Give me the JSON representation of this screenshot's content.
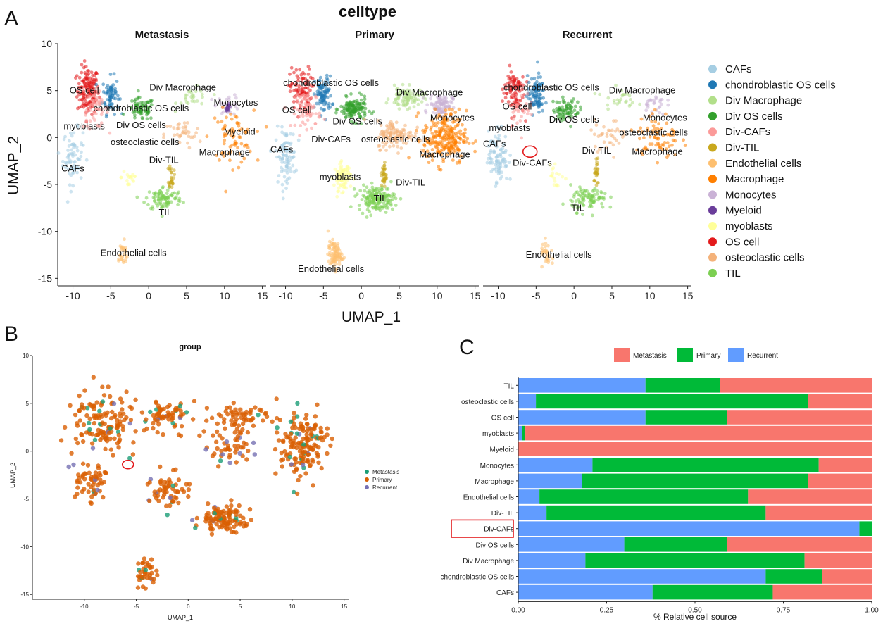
{
  "panel_letters": {
    "a": "A",
    "b": "B",
    "c": "C"
  },
  "colors": {
    "CAFs": "#a6cee3",
    "chondroblastic OS cells": "#1f78b4",
    "Div Macrophage": "#b2df8a",
    "Div OS cells": "#33a02c",
    "Div-CAFs": "#fb9a99",
    "Div-TIL": "#c9a81e",
    "Endothelial cells": "#fdbf6f",
    "Macrophage": "#ff7f00",
    "Monocytes": "#cab2d6",
    "Myeloid": "#6a3d9a",
    "myoblasts": "#ffff99",
    "OS cell": "#e31a1c",
    "osteoclastic cells": "#f4b27a",
    "TIL": "#7ccf52",
    "Metastasis_B": "#1b9e77",
    "Primary_B": "#d95f02",
    "Recurrent_B": "#7570b3",
    "Metastasis_C": "#f8766d",
    "Primary_C": "#00ba38",
    "Recurrent_C": "#619cff"
  },
  "chart_data": [
    {
      "id": "A",
      "type": "scatter",
      "title": "celltype",
      "xlabel": "UMAP_1",
      "ylabel": "UMAP_2",
      "xlim": [
        -12,
        15.5
      ],
      "ylim": [
        -15.8,
        10
      ],
      "xticks": [
        "-10",
        "-5",
        "0",
        "5",
        "10",
        "15"
      ],
      "yticks": [
        "10",
        "5",
        "0",
        "-5",
        "-10",
        "-15"
      ],
      "facets": [
        {
          "name": "Metastasis",
          "labels": [
            {
              "text": "OS cell",
              "x": -8.5,
              "y": 5
            },
            {
              "text": "Div Macrophage",
              "x": 4.5,
              "y": 5.3
            },
            {
              "text": "chondroblastic OS cells",
              "x": -1,
              "y": 3.1
            },
            {
              "text": "Monocytes",
              "x": 11.5,
              "y": 3.7
            },
            {
              "text": "myoblasts",
              "x": -8.5,
              "y": 1.2
            },
            {
              "text": "Div OS cells",
              "x": -1,
              "y": 1.3
            },
            {
              "text": "Myeloid",
              "x": 12,
              "y": 0.6
            },
            {
              "text": "osteoclastic cells",
              "x": -0.5,
              "y": -0.5
            },
            {
              "text": "Macrophage",
              "x": 10,
              "y": -1.6
            },
            {
              "text": "Div-TIL",
              "x": 2,
              "y": -2.4
            },
            {
              "text": "CAFs",
              "x": -10,
              "y": -3.3
            },
            {
              "text": "TIL",
              "x": 2.2,
              "y": -8
            },
            {
              "text": "Endothelial cells",
              "x": -2,
              "y": -12.3
            }
          ]
        },
        {
          "name": "Primary",
          "labels": [
            {
              "text": "chondroblastic OS cells",
              "x": -4,
              "y": 5.8
            },
            {
              "text": "Div Macrophage",
              "x": 9,
              "y": 4.8
            },
            {
              "text": "OS cell",
              "x": -8.5,
              "y": 2.9
            },
            {
              "text": "Div OS cells",
              "x": -0.5,
              "y": 1.7
            },
            {
              "text": "Monocytes",
              "x": 12,
              "y": 2.1
            },
            {
              "text": "Div-CAFs",
              "x": -4,
              "y": -0.2
            },
            {
              "text": "osteoclastic cells",
              "x": 4.5,
              "y": -0.2
            },
            {
              "text": "CAFs",
              "x": -10.5,
              "y": -1.3
            },
            {
              "text": "Macrophage",
              "x": 11,
              "y": -1.8
            },
            {
              "text": "myoblasts",
              "x": -2.8,
              "y": -4.2
            },
            {
              "text": "Div-TIL",
              "x": 6.5,
              "y": -4.8
            },
            {
              "text": "TIL",
              "x": 2.5,
              "y": -6.5
            },
            {
              "text": "Endothelial cells",
              "x": -4,
              "y": -14
            }
          ]
        },
        {
          "name": "Recurrent",
          "labels": [
            {
              "text": "chondroblastic OS cells",
              "x": -3,
              "y": 5.3
            },
            {
              "text": "Div Macrophage",
              "x": 9,
              "y": 5
            },
            {
              "text": "OS cell",
              "x": -7.5,
              "y": 3.3
            },
            {
              "text": "Monocytes",
              "x": 12,
              "y": 2.1
            },
            {
              "text": "myoblasts",
              "x": -8.5,
              "y": 1
            },
            {
              "text": "Div OS cells",
              "x": 0,
              "y": 1.9
            },
            {
              "text": "osteoclastic cells",
              "x": 10.5,
              "y": 0.5
            },
            {
              "text": "CAFs",
              "x": -10.5,
              "y": -0.7
            },
            {
              "text": "Div-TIL",
              "x": 3,
              "y": -1.4
            },
            {
              "text": "Macrophage",
              "x": 11,
              "y": -1.5
            },
            {
              "text": "Div-CAFs",
              "x": -5.5,
              "y": -2.7
            },
            {
              "text": "TIL",
              "x": 0.5,
              "y": -7.5
            },
            {
              "text": "Endothelial cells",
              "x": -2,
              "y": -12.5
            }
          ]
        }
      ],
      "legend": [
        "CAFs",
        "chondroblastic OS cells",
        "Div Macrophage",
        "Div OS cells",
        "Div-CAFs",
        "Div-TIL",
        "Endothelial cells",
        "Macrophage",
        "Monocytes",
        "Myeloid",
        "myoblasts",
        "OS cell",
        "osteoclastic cells",
        "TIL"
      ],
      "clusters": [
        {
          "cell": "OS cell",
          "cx": -8,
          "cy": 5,
          "sx": 1.3,
          "sy": 2.3,
          "w": [
            1.6,
            1.0,
            1.0
          ]
        },
        {
          "cell": "chondroblastic OS cells",
          "cx": -5,
          "cy": 4.5,
          "sx": 1,
          "sy": 1.8,
          "w": [
            0.8,
            1.0,
            1.0
          ]
        },
        {
          "cell": "CAFs",
          "cx": -10,
          "cy": -2,
          "sx": 1.2,
          "sy": 2.6,
          "w": [
            0.8,
            1.0,
            1.0
          ]
        },
        {
          "cell": "Div-CAFs",
          "cx": -7,
          "cy": 3,
          "sx": 1.5,
          "sy": 1.8,
          "w": [
            0.6,
            0.8,
            0.3
          ]
        },
        {
          "cell": "myoblasts",
          "cx": -2.5,
          "cy": -4.2,
          "sx": 1,
          "sy": 1.3,
          "w": [
            0.2,
            1.0,
            0.2
          ]
        },
        {
          "cell": "Div OS cells",
          "cx": -1,
          "cy": 3,
          "sx": 1.6,
          "sy": 1.1,
          "w": [
            0.8,
            1.5,
            0.8
          ]
        },
        {
          "cell": "Div Macrophage",
          "cx": 6,
          "cy": 4.2,
          "sx": 2,
          "sy": 1,
          "w": [
            0.3,
            1.0,
            0.3
          ]
        },
        {
          "cell": "Monocytes",
          "cx": 10.5,
          "cy": 3.5,
          "sx": 1.4,
          "sy": 1,
          "w": [
            0.3,
            1.0,
            0.3
          ]
        },
        {
          "cell": "Myeloid",
          "cx": 10.5,
          "cy": 3.2,
          "sx": 0.3,
          "sy": 0.3,
          "w": [
            0.2,
            0,
            0
          ]
        },
        {
          "cell": "Macrophage",
          "cx": 11,
          "cy": 0,
          "sx": 2.6,
          "sy": 2.6,
          "w": [
            0.8,
            2.8,
            0.8
          ]
        },
        {
          "cell": "osteoclastic cells",
          "cx": 4.5,
          "cy": 0.3,
          "sx": 2.2,
          "sy": 1.4,
          "w": [
            0.4,
            1.3,
            0.4
          ]
        },
        {
          "cell": "TIL",
          "cx": 2,
          "cy": -6.5,
          "sx": 2.2,
          "sy": 1.2,
          "w": [
            1.0,
            1.8,
            1.0
          ]
        },
        {
          "cell": "Div-TIL",
          "cx": 3,
          "cy": -4,
          "sx": 0.3,
          "sy": 1.2,
          "w": [
            0.3,
            0.4,
            0.3
          ]
        },
        {
          "cell": "Endothelial cells",
          "cx": -3.5,
          "cy": -12.5,
          "sx": 0.8,
          "sy": 1.3,
          "w": [
            0.3,
            1.0,
            0.3
          ]
        }
      ]
    },
    {
      "id": "B",
      "type": "scatter",
      "title": "group",
      "xlabel": "UMAP_1",
      "ylabel": "UMAP_2",
      "xlim": [
        -15,
        15.5
      ],
      "ylim": [
        -15.5,
        10
      ],
      "xticks": [
        "-10",
        "-5",
        "0",
        "5",
        "10",
        "15"
      ],
      "yticks": [
        "10",
        "5",
        "0",
        "-5",
        "-10",
        "-15"
      ],
      "legend": [
        "Metastasis",
        "Primary",
        "Recurrent"
      ]
    },
    {
      "id": "C",
      "type": "bar",
      "orientation": "horizontal",
      "stacked": true,
      "xlabel": "% Relative cell source",
      "xticks": [
        "0.00",
        "0.25",
        "0.50",
        "0.75",
        "1.00"
      ],
      "xlim": [
        0,
        1
      ],
      "legend": [
        "Metastasis",
        "Primary",
        "Recurrent"
      ],
      "highlight": "Div-CAFs",
      "categories": [
        "TIL",
        "osteoclastic cells",
        "OS cell",
        "myoblasts",
        "Myeloid",
        "Monocytes",
        "Macrophage",
        "Endothelial cells",
        "Div-TIL",
        "Div-CAFs",
        "Div OS cells",
        "Div Macrophage",
        "chondroblastic OS cells",
        "CAFs"
      ],
      "series": [
        {
          "name": "Recurrent",
          "values": [
            0.36,
            0.05,
            0.36,
            0.01,
            0.0,
            0.21,
            0.18,
            0.06,
            0.08,
            0.965,
            0.3,
            0.19,
            0.7,
            0.38
          ]
        },
        {
          "name": "Primary",
          "values": [
            0.21,
            0.77,
            0.23,
            0.01,
            0.0,
            0.64,
            0.64,
            0.59,
            0.62,
            0.035,
            0.29,
            0.62,
            0.16,
            0.34
          ]
        },
        {
          "name": "Metastasis",
          "values": [
            0.43,
            0.18,
            0.41,
            0.98,
            1.0,
            0.15,
            0.18,
            0.35,
            0.3,
            0.0,
            0.41,
            0.19,
            0.14,
            0.28
          ]
        }
      ]
    }
  ]
}
